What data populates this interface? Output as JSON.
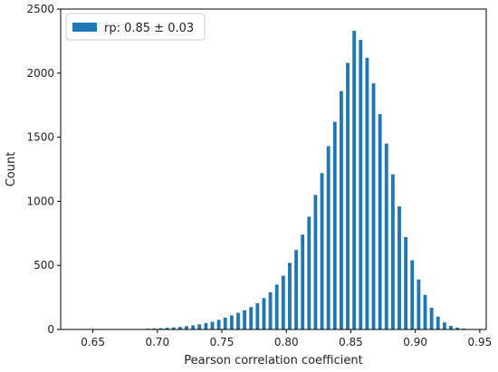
{
  "chart_data": {
    "type": "bar",
    "title": "",
    "xlabel": "Pearson correlation coefficient",
    "ylabel": "Count",
    "xlim": [
      0.625,
      0.955
    ],
    "ylim": [
      0,
      2500
    ],
    "xticks": [
      "0.65",
      "0.70",
      "0.75",
      "0.80",
      "0.85",
      "0.90",
      "0.95"
    ],
    "yticks": [
      "0",
      "500",
      "1000",
      "1500",
      "2000",
      "2500"
    ],
    "legend": {
      "position": "top-left",
      "label": "rp: 0.85 ± 0.03"
    },
    "grid": false,
    "series_color": "#1f77b4",
    "bin_width": 0.0025,
    "bins": [
      [
        0.635,
        1
      ],
      [
        0.645,
        1
      ],
      [
        0.655,
        2
      ],
      [
        0.665,
        2
      ],
      [
        0.675,
        3
      ],
      [
        0.685,
        4
      ],
      [
        0.6925,
        6
      ],
      [
        0.6975,
        8
      ],
      [
        0.7025,
        10
      ],
      [
        0.7075,
        13
      ],
      [
        0.7125,
        16
      ],
      [
        0.7175,
        20
      ],
      [
        0.7225,
        26
      ],
      [
        0.7275,
        32
      ],
      [
        0.7325,
        40
      ],
      [
        0.7375,
        50
      ],
      [
        0.7425,
        60
      ],
      [
        0.7475,
        75
      ],
      [
        0.7525,
        92
      ],
      [
        0.7575,
        110
      ],
      [
        0.7625,
        130
      ],
      [
        0.7675,
        150
      ],
      [
        0.7725,
        175
      ],
      [
        0.7775,
        205
      ],
      [
        0.7825,
        245
      ],
      [
        0.7875,
        290
      ],
      [
        0.7925,
        350
      ],
      [
        0.7975,
        420
      ],
      [
        0.8025,
        520
      ],
      [
        0.8075,
        620
      ],
      [
        0.8125,
        740
      ],
      [
        0.8175,
        880
      ],
      [
        0.8225,
        1050
      ],
      [
        0.8275,
        1220
      ],
      [
        0.8325,
        1430
      ],
      [
        0.8375,
        1620
      ],
      [
        0.8425,
        1860
      ],
      [
        0.8475,
        2080
      ],
      [
        0.8525,
        2330
      ],
      [
        0.8575,
        2260
      ],
      [
        0.8625,
        2120
      ],
      [
        0.8675,
        1920
      ],
      [
        0.8725,
        1680
      ],
      [
        0.8775,
        1450
      ],
      [
        0.8825,
        1210
      ],
      [
        0.8875,
        960
      ],
      [
        0.8925,
        720
      ],
      [
        0.8975,
        540
      ],
      [
        0.9025,
        390
      ],
      [
        0.9075,
        270
      ],
      [
        0.9125,
        170
      ],
      [
        0.9175,
        100
      ],
      [
        0.9225,
        55
      ],
      [
        0.9275,
        28
      ],
      [
        0.9325,
        14
      ],
      [
        0.9375,
        7
      ],
      [
        0.9425,
        3
      ],
      [
        0.9475,
        1
      ]
    ]
  }
}
